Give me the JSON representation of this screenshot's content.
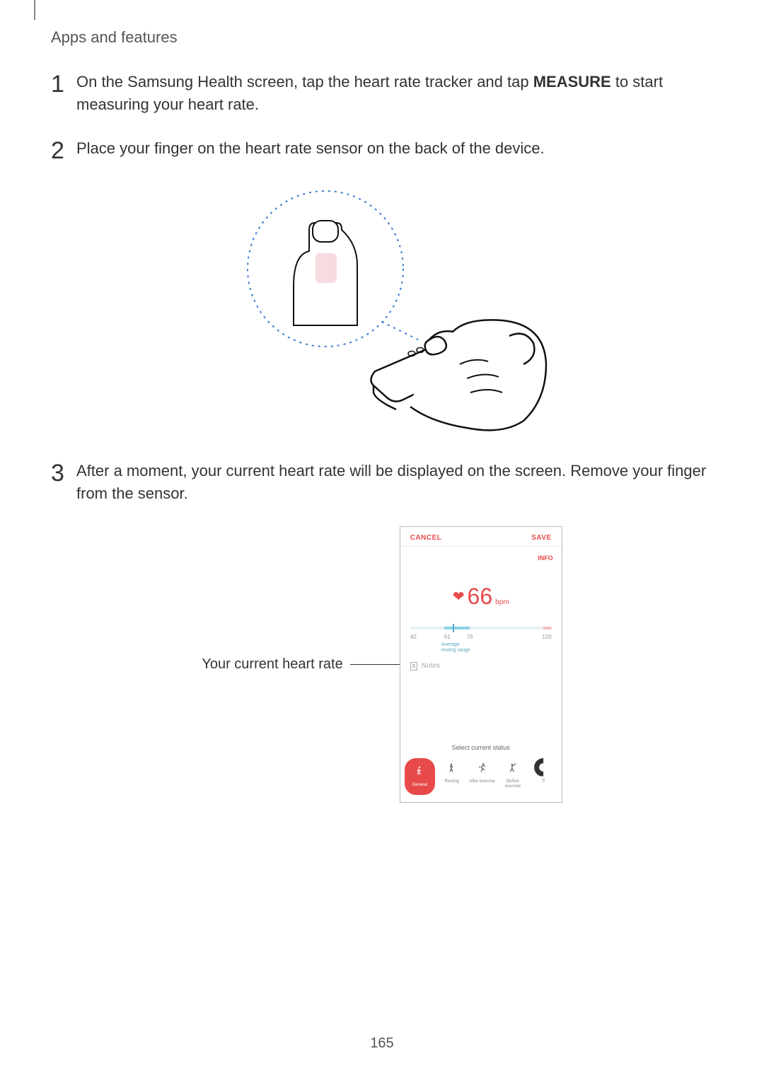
{
  "header": {
    "title": "Apps and features"
  },
  "steps": [
    {
      "num": "1",
      "text_pre": "On the Samsung Health screen, tap the heart rate tracker and tap ",
      "text_bold": "MEASURE",
      "text_post": " to start measuring your heart rate."
    },
    {
      "num": "2",
      "text_pre": "Place your finger on the heart rate sensor on the back of the device.",
      "text_bold": "",
      "text_post": ""
    },
    {
      "num": "3",
      "text_pre": "After a moment, your current heart rate will be displayed on the screen. Remove your finger from the sensor.",
      "text_bold": "",
      "text_post": ""
    }
  ],
  "illustration1": {
    "dot_color": "#3b7bd4",
    "sensor_fill": "#f7dbe0"
  },
  "callout_label": "Your current heart rate",
  "mock": {
    "cancel": "CANCEL",
    "save": "SAVE",
    "info": "INFO",
    "accent": "#e84a4a",
    "hr_value": "66",
    "hr_unit": "bpm",
    "scale": {
      "min": "40",
      "r1": "61",
      "r2": "76",
      "max": "120",
      "avg_line1": "Average",
      "avg_line2": "resting range",
      "avg_color": "#5aa8c0",
      "marker_pct": 30
    },
    "notes": "Notes",
    "status_label": "Select current status",
    "status": [
      {
        "label": "General",
        "icon": "walk",
        "active": true
      },
      {
        "label": "Resting",
        "icon": "stand",
        "active": false
      },
      {
        "label": "After exercise",
        "icon": "run",
        "active": false
      },
      {
        "label": "Before exercise",
        "icon": "stretch",
        "active": false
      },
      {
        "label": "Ti",
        "icon": "more",
        "active": false
      }
    ],
    "active_bg": "#e84a4a",
    "inactive_color": "#555"
  },
  "page_number": "165"
}
